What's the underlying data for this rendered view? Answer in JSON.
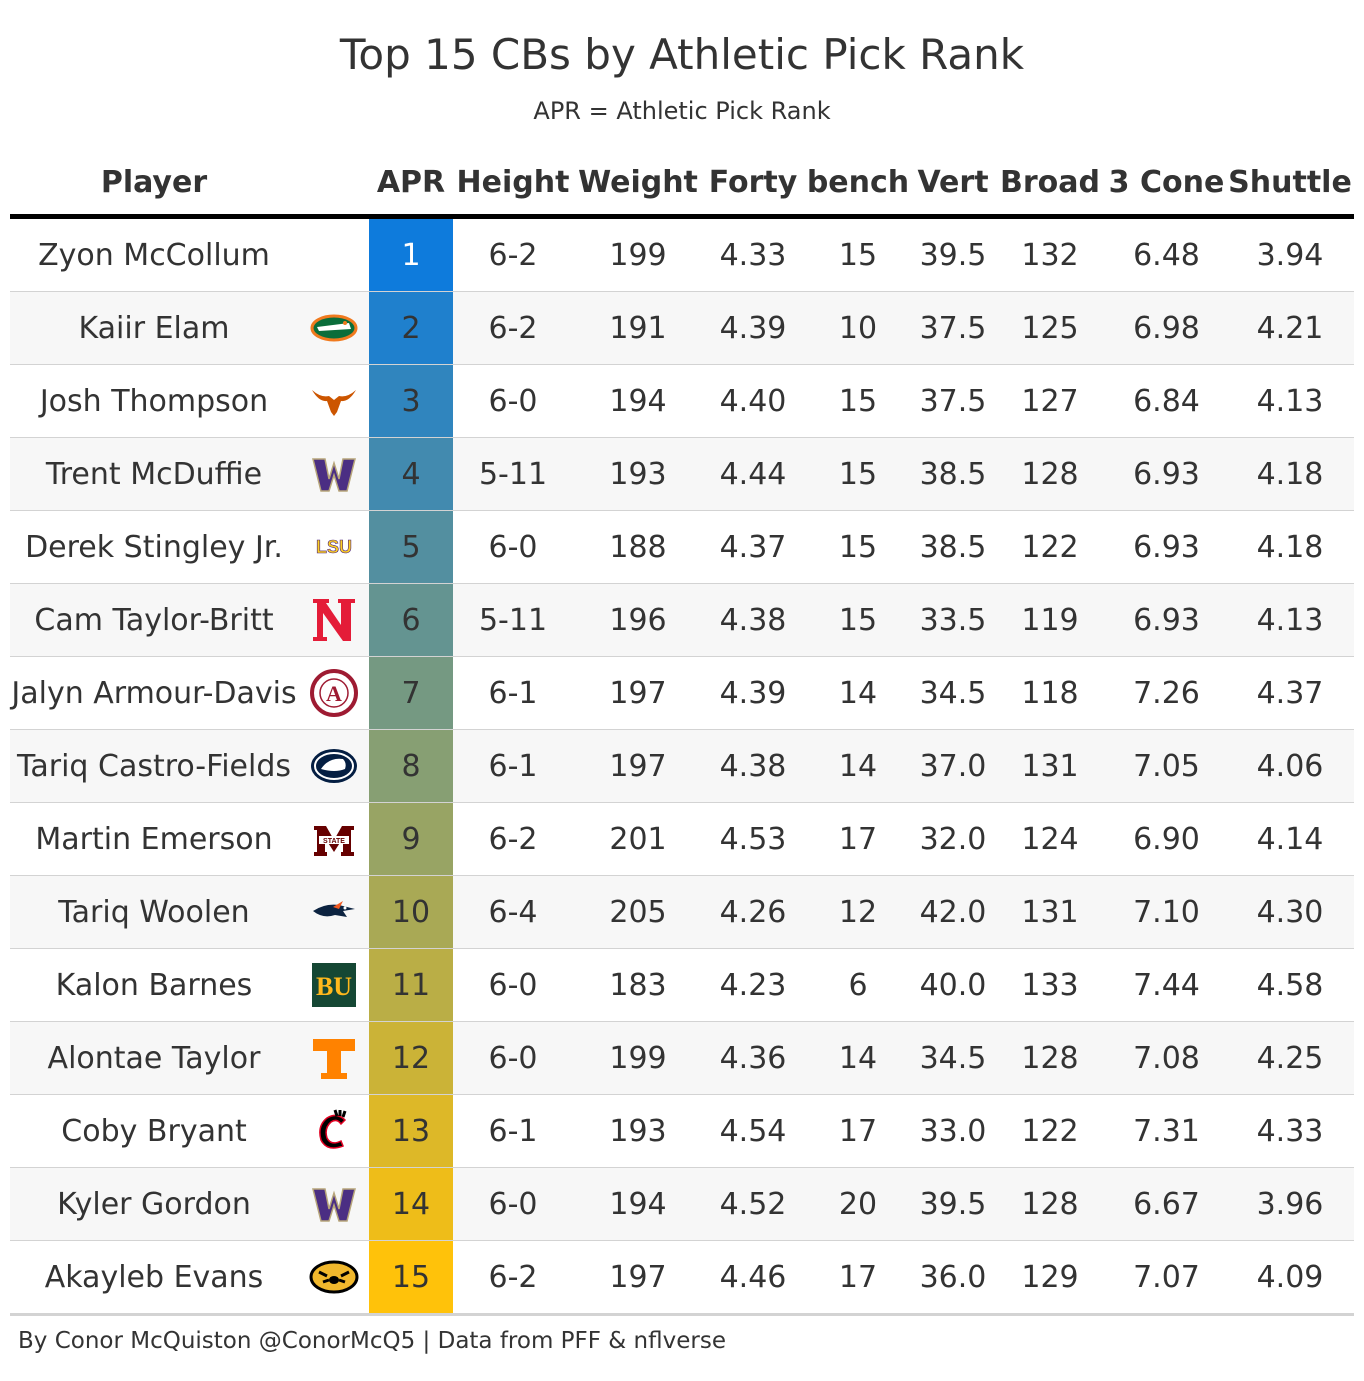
{
  "title": "Top 15 CBs by Athletic Pick Rank",
  "subtitle": "APR = Athletic Pick Rank",
  "footer": "By Conor McQuiston @ConorMcQ5 | Data from PFF & nflverse",
  "colors": {
    "apr_low": "#0e7bdc",
    "apr_high": "#ffc20a"
  },
  "chart_data": {
    "type": "table",
    "columns": [
      "Player",
      "",
      "APR",
      "Height",
      "Weight",
      "Forty",
      "bench",
      "Vert",
      "Broad",
      "3 Cone",
      "Shuttle"
    ],
    "rows": [
      {
        "player": "Zyon McCollum",
        "logo": "none",
        "apr": "1",
        "height": "6-2",
        "weight": "199",
        "forty": "4.33",
        "bench": "15",
        "vert": "39.5",
        "broad": "132",
        "cone": "6.48",
        "shuttle": "3.94"
      },
      {
        "player": "Kaiir Elam",
        "logo": "florida-gator-icon",
        "apr": "2",
        "height": "6-2",
        "weight": "191",
        "forty": "4.39",
        "bench": "10",
        "vert": "37.5",
        "broad": "125",
        "cone": "6.98",
        "shuttle": "4.21"
      },
      {
        "player": "Josh Thompson",
        "logo": "longhorn-icon",
        "apr": "3",
        "height": "6-0",
        "weight": "194",
        "forty": "4.40",
        "bench": "15",
        "vert": "37.5",
        "broad": "127",
        "cone": "6.84",
        "shuttle": "4.13"
      },
      {
        "player": "Trent McDuffie",
        "logo": "washington-w-icon",
        "apr": "4",
        "height": "5-11",
        "weight": "193",
        "forty": "4.44",
        "bench": "15",
        "vert": "38.5",
        "broad": "128",
        "cone": "6.93",
        "shuttle": "4.18"
      },
      {
        "player": "Derek Stingley Jr.",
        "logo": "lsu-icon",
        "apr": "5",
        "height": "6-0",
        "weight": "188",
        "forty": "4.37",
        "bench": "15",
        "vert": "38.5",
        "broad": "122",
        "cone": "6.93",
        "shuttle": "4.18"
      },
      {
        "player": "Cam Taylor-Britt",
        "logo": "nebraska-n-icon",
        "apr": "6",
        "height": "5-11",
        "weight": "196",
        "forty": "4.38",
        "bench": "15",
        "vert": "33.5",
        "broad": "119",
        "cone": "6.93",
        "shuttle": "4.13"
      },
      {
        "player": "Jalyn Armour-Davis",
        "logo": "alabama-seal-icon",
        "apr": "7",
        "height": "6-1",
        "weight": "197",
        "forty": "4.39",
        "bench": "14",
        "vert": "34.5",
        "broad": "118",
        "cone": "7.26",
        "shuttle": "4.37"
      },
      {
        "player": "Tariq Castro-Fields",
        "logo": "penn-state-lion-icon",
        "apr": "8",
        "height": "6-1",
        "weight": "197",
        "forty": "4.38",
        "bench": "14",
        "vert": "37.0",
        "broad": "131",
        "cone": "7.05",
        "shuttle": "4.06"
      },
      {
        "player": "Martin Emerson",
        "logo": "mississippi-state-m-icon",
        "apr": "9",
        "height": "6-2",
        "weight": "201",
        "forty": "4.53",
        "bench": "17",
        "vert": "32.0",
        "broad": "124",
        "cone": "6.90",
        "shuttle": "4.14"
      },
      {
        "player": "Tariq Woolen",
        "logo": "utsa-roadrunner-icon",
        "apr": "10",
        "height": "6-4",
        "weight": "205",
        "forty": "4.26",
        "bench": "12",
        "vert": "42.0",
        "broad": "131",
        "cone": "7.10",
        "shuttle": "4.30"
      },
      {
        "player": "Kalon Barnes",
        "logo": "baylor-bu-icon",
        "apr": "11",
        "height": "6-0",
        "weight": "183",
        "forty": "4.23",
        "bench": "6",
        "vert": "40.0",
        "broad": "133",
        "cone": "7.44",
        "shuttle": "4.58"
      },
      {
        "player": "Alontae Taylor",
        "logo": "tennessee-t-icon",
        "apr": "12",
        "height": "6-0",
        "weight": "199",
        "forty": "4.36",
        "bench": "14",
        "vert": "34.5",
        "broad": "128",
        "cone": "7.08",
        "shuttle": "4.25"
      },
      {
        "player": "Coby Bryant",
        "logo": "cincinnati-c-icon",
        "apr": "13",
        "height": "6-1",
        "weight": "193",
        "forty": "4.54",
        "bench": "17",
        "vert": "33.0",
        "broad": "122",
        "cone": "7.31",
        "shuttle": "4.33"
      },
      {
        "player": "Kyler Gordon",
        "logo": "washington-w-icon",
        "apr": "14",
        "height": "6-0",
        "weight": "194",
        "forty": "4.52",
        "bench": "20",
        "vert": "39.5",
        "broad": "128",
        "cone": "6.67",
        "shuttle": "3.96"
      },
      {
        "player": "Akayleb Evans",
        "logo": "missouri-tiger-icon",
        "apr": "15",
        "height": "6-2",
        "weight": "197",
        "forty": "4.46",
        "bench": "17",
        "vert": "36.0",
        "broad": "129",
        "cone": "7.07",
        "shuttle": "4.09"
      }
    ]
  }
}
